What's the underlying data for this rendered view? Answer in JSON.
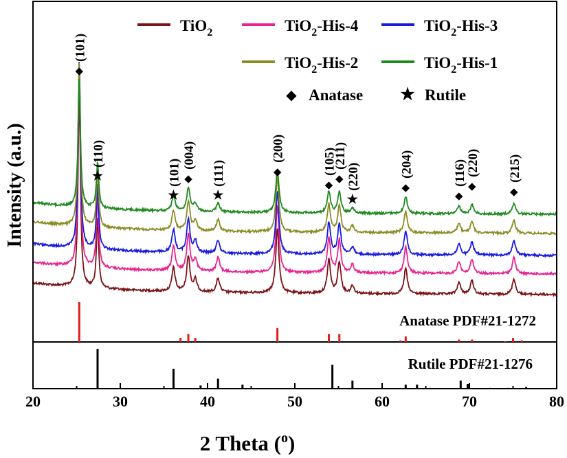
{
  "chart_data": {
    "type": "line",
    "xlabel": "2 Theta (",
    "xlabel_sup": "o",
    "xlabel_close": ")",
    "ylabel": "Intensity (a.u.)",
    "xlim": [
      20,
      80
    ],
    "xticks": [
      "20",
      "30",
      "40",
      "50",
      "60",
      "70",
      "80"
    ],
    "series": [
      {
        "name": "TiO",
        "sub": "2",
        "suffix": "",
        "color": "#7b1216"
      },
      {
        "name": "TiO",
        "sub": "2",
        "suffix": "-His-4",
        "color": "#e8238f"
      },
      {
        "name": "TiO",
        "sub": "2",
        "suffix": "-His-3",
        "color": "#1a1adf"
      },
      {
        "name": "TiO",
        "sub": "2",
        "suffix": "-His-2",
        "color": "#8b8b25"
      },
      {
        "name": "TiO",
        "sub": "2",
        "suffix": "-His-1",
        "color": "#1f8a1f"
      }
    ],
    "phase_legend": [
      {
        "symbol": "◆",
        "label": "Anatase"
      },
      {
        "symbol": "★",
        "label": "Rutile"
      }
    ],
    "peaks": [
      {
        "x": 25.3,
        "phase": "anatase",
        "height": 1.0
      },
      {
        "x": 27.4,
        "phase": "rutile",
        "height": 0.35
      },
      {
        "x": 36.1,
        "phase": "rutile",
        "height": 0.12
      },
      {
        "x": 37.8,
        "phase": "anatase",
        "height": 0.18
      },
      {
        "x": 38.6,
        "phase": "anatase",
        "height": 0.06
      },
      {
        "x": 41.2,
        "phase": "rutile",
        "height": 0.07
      },
      {
        "x": 48.0,
        "phase": "anatase",
        "height": 0.33
      },
      {
        "x": 53.9,
        "phase": "anatase",
        "height": 0.17
      },
      {
        "x": 55.1,
        "phase": "anatase",
        "height": 0.16
      },
      {
        "x": 56.6,
        "phase": "rutile",
        "height": 0.04
      },
      {
        "x": 62.7,
        "phase": "anatase",
        "height": 0.13
      },
      {
        "x": 68.8,
        "phase": "anatase",
        "height": 0.06
      },
      {
        "x": 70.3,
        "phase": "anatase",
        "height": 0.07
      },
      {
        "x": 75.1,
        "phase": "anatase",
        "height": 0.08
      }
    ],
    "peak_labels": [
      {
        "x": 25.3,
        "symbol": "◆",
        "label": "(101)"
      },
      {
        "x": 27.4,
        "symbol": "★",
        "label": "(110)"
      },
      {
        "x": 36.1,
        "symbol": "★",
        "label": "(101)"
      },
      {
        "x": 37.8,
        "symbol": "◆",
        "label": "(004)"
      },
      {
        "x": 41.2,
        "symbol": "★",
        "label": "(111)"
      },
      {
        "x": 48.0,
        "symbol": "◆",
        "label": "(200)"
      },
      {
        "x": 53.9,
        "symbol": "◆",
        "label": "(105)"
      },
      {
        "x": 55.1,
        "symbol": "◆",
        "label": "(211)"
      },
      {
        "x": 56.6,
        "symbol": "★",
        "label": "(220)"
      },
      {
        "x": 62.7,
        "symbol": "◆",
        "label": "(204)"
      },
      {
        "x": 68.8,
        "symbol": "◆",
        "label": "(116)"
      },
      {
        "x": 70.3,
        "symbol": "◆",
        "label": "(220)"
      },
      {
        "x": 75.1,
        "symbol": "◆",
        "label": "(215)"
      }
    ],
    "reference_anatase": {
      "label": "Anatase PDF#21-1272",
      "color": "#e01b1b",
      "lines": [
        {
          "x": 25.3,
          "i": 100
        },
        {
          "x": 36.9,
          "i": 10
        },
        {
          "x": 37.8,
          "i": 20
        },
        {
          "x": 38.6,
          "i": 10
        },
        {
          "x": 48.0,
          "i": 35
        },
        {
          "x": 53.9,
          "i": 20
        },
        {
          "x": 55.1,
          "i": 20
        },
        {
          "x": 62.1,
          "i": 4
        },
        {
          "x": 62.7,
          "i": 14
        },
        {
          "x": 68.8,
          "i": 6
        },
        {
          "x": 70.3,
          "i": 6
        },
        {
          "x": 74.1,
          "i": 2
        },
        {
          "x": 75.0,
          "i": 10
        },
        {
          "x": 76.0,
          "i": 4
        }
      ]
    },
    "reference_rutile": {
      "label": "Rutile PDF#21-1276",
      "color": "#000000",
      "lines": [
        {
          "x": 27.4,
          "i": 100
        },
        {
          "x": 36.1,
          "i": 50
        },
        {
          "x": 39.2,
          "i": 8
        },
        {
          "x": 41.2,
          "i": 25
        },
        {
          "x": 44.0,
          "i": 10
        },
        {
          "x": 54.3,
          "i": 60
        },
        {
          "x": 56.6,
          "i": 20
        },
        {
          "x": 62.7,
          "i": 10
        },
        {
          "x": 64.0,
          "i": 10
        },
        {
          "x": 65.5,
          "i": 2
        },
        {
          "x": 69.0,
          "i": 20
        },
        {
          "x": 69.8,
          "i": 12
        },
        {
          "x": 72.4,
          "i": 2
        },
        {
          "x": 74.4,
          "i": 2
        },
        {
          "x": 76.5,
          "i": 4
        }
      ]
    }
  }
}
